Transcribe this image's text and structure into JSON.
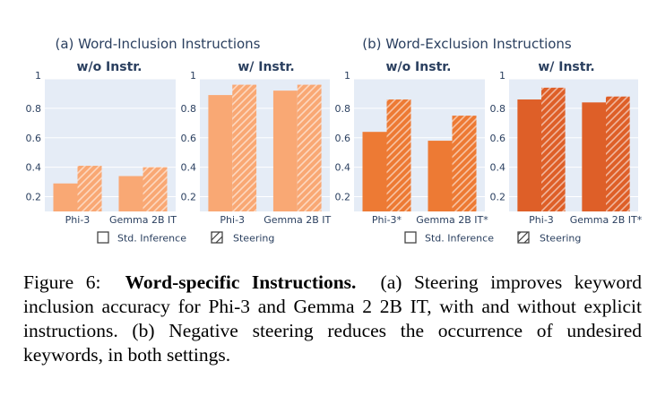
{
  "chart_data": [
    {
      "type": "bar",
      "group_title": "(a) Word-Inclusion Instructions",
      "title": "w/o Instr.",
      "categories": [
        "Phi-3",
        "Gemma 2B IT"
      ],
      "series": [
        {
          "name": "Std. Inference",
          "values": [
            0.29,
            0.34
          ]
        },
        {
          "name": "Steering",
          "values": [
            0.41,
            0.4
          ]
        }
      ],
      "ylim": [
        0.1,
        1
      ],
      "yticks": [
        "0.2",
        "0.4",
        "0.6",
        "0.8",
        "1"
      ],
      "colors": {
        "std": "#f9a874",
        "steer": "#f9a874"
      }
    },
    {
      "type": "bar",
      "title": "w/ Instr.",
      "categories": [
        "Phi-3",
        "Gemma 2B IT"
      ],
      "series": [
        {
          "name": "Std. Inference",
          "values": [
            0.89,
            0.92
          ]
        },
        {
          "name": "Steering",
          "values": [
            0.96,
            0.96
          ]
        }
      ],
      "ylim": [
        0.1,
        1
      ],
      "yticks": [
        "0.2",
        "0.4",
        "0.6",
        "0.8",
        "1"
      ],
      "colors": {
        "std": "#f9a874",
        "steer": "#f9a874"
      }
    },
    {
      "type": "bar",
      "group_title": "(b) Word-Exclusion Instructions",
      "title": "w/o Instr.",
      "categories": [
        "Phi-3*",
        "Gemma 2B IT*"
      ],
      "series": [
        {
          "name": "Std. Inference",
          "values": [
            0.64,
            0.58
          ]
        },
        {
          "name": "Steering",
          "values": [
            0.86,
            0.75
          ]
        }
      ],
      "ylim": [
        0.1,
        1
      ],
      "yticks": [
        "0.2",
        "0.4",
        "0.6",
        "0.8",
        "1"
      ],
      "colors": {
        "std": "#ed7a34",
        "steer": "#ed7a34"
      }
    },
    {
      "type": "bar",
      "title": "w/ Instr.",
      "categories": [
        "Phi-3",
        "Gemma 2B IT*"
      ],
      "series": [
        {
          "name": "Std. Inference",
          "values": [
            0.86,
            0.84
          ]
        },
        {
          "name": "Steering",
          "values": [
            0.94,
            0.88
          ]
        }
      ],
      "ylim": [
        0.1,
        1
      ],
      "yticks": [
        "0.2",
        "0.4",
        "0.6",
        "0.8",
        "1"
      ],
      "colors": {
        "std": "#de5f28",
        "steer": "#de5f28"
      }
    }
  ],
  "legend": {
    "std_label": "Std. Inference",
    "steer_label": "Steering"
  },
  "caption": {
    "label": "Figure 6:",
    "bold": "Word-specific Instructions.",
    "text": "(a) Steering improves keyword inclusion accuracy for Phi-3 and Gemma 2 2B IT, with and without explicit instructions. (b) Negative steering reduces the occurrence of undesired keywords, in both settings."
  },
  "colors": {
    "plot_bg": "#e5ecf6",
    "axis_text": "#2a3f5f"
  }
}
